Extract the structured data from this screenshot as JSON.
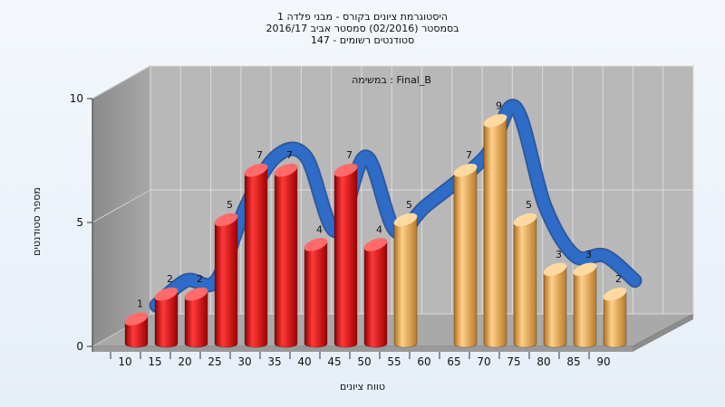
{
  "chart_data": {
    "type": "bar",
    "title": "היסטוגרמת ציונים בקורס - מבני פלדה 1",
    "subtitle1": "בסמסטר  (02/2016)  סמסטר אביב 2016/17",
    "subtitle2": "סטודנטים רשומים - 147",
    "annotation": "במשימה : Final_B",
    "xlabel": "טווח ציונים",
    "ylabel": "מספר סטודנטים",
    "ylim": [
      0,
      10
    ],
    "yticks": [
      0,
      5,
      10
    ],
    "categories": [
      "10",
      "15",
      "20",
      "25",
      "30",
      "35",
      "40",
      "45",
      "50",
      "55",
      "60",
      "65",
      "70",
      "75",
      "80",
      "85",
      "90"
    ],
    "values": [
      1,
      2,
      2,
      5,
      7,
      7,
      4,
      7,
      4,
      5,
      0,
      7,
      9,
      5,
      3,
      3,
      2
    ],
    "fail_color": "#e01818",
    "pass_color": "#e8a640",
    "curve_color": "#2f6cc8",
    "grid": true,
    "legend": "none"
  }
}
